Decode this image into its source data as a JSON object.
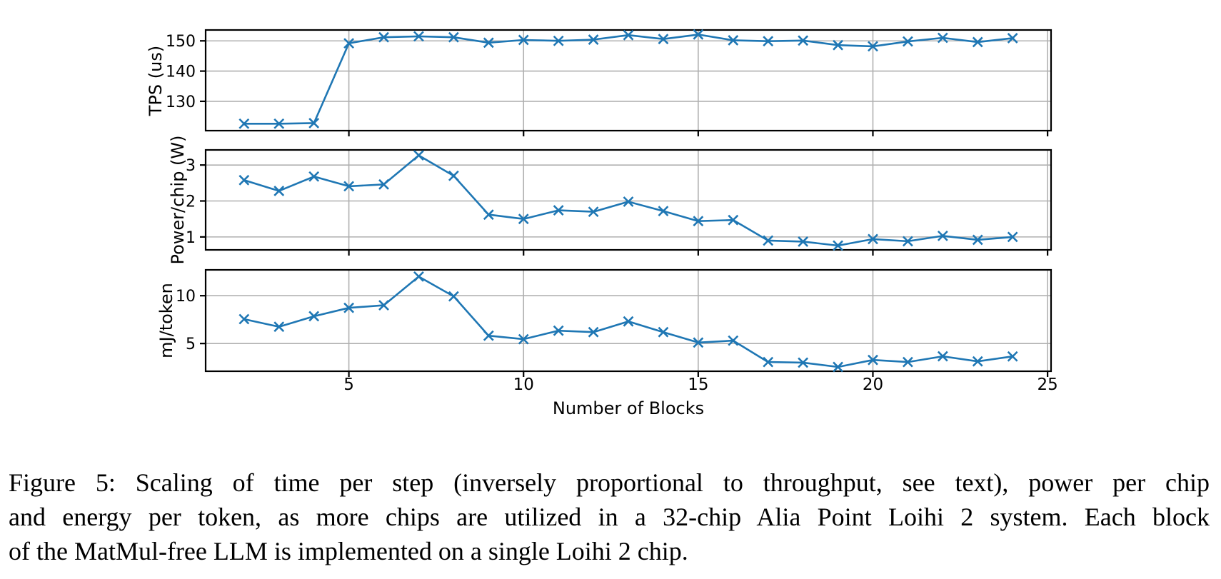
{
  "figure": {
    "caption_lines": [
      "Figure 5: Scaling of time per step (inversely proportional to throughput, see text), power per chip",
      "and energy per token, as more chips are utilized in a 32-chip Alia Point Loihi 2 system. Each block",
      "of the MatMul-free LLM is implemented on a single Loihi 2 chip."
    ]
  },
  "chart_data": {
    "type": "line",
    "title": "",
    "xlabel": "Number of Blocks",
    "x": [
      2,
      3,
      4,
      5,
      6,
      7,
      8,
      9,
      10,
      11,
      12,
      13,
      14,
      15,
      16,
      17,
      18,
      19,
      20,
      21,
      22,
      23,
      24
    ],
    "xlim": [
      0.9,
      25.1
    ],
    "xticks": [
      5,
      10,
      15,
      20,
      25
    ],
    "marker": "x",
    "line_color": "#1f77b4",
    "grid_color": "#b0b0b0",
    "frame_color": "#000000",
    "grid": "on",
    "legend": "none",
    "series": [
      {
        "name": "TPS (us)",
        "ylabel": "TPS (us)",
        "ylim": [
          120.3,
          153.6
        ],
        "yticks": [
          130,
          140,
          150
        ],
        "values": [
          122.6,
          122.6,
          122.8,
          149.2,
          151.2,
          151.5,
          151.2,
          149.4,
          150.3,
          150.0,
          150.4,
          151.9,
          150.6,
          152.1,
          150.2,
          149.9,
          150.1,
          148.6,
          148.2,
          149.8,
          151.0,
          149.6,
          150.9
        ]
      },
      {
        "name": "Power/chip (W)",
        "ylabel": "Power/chip (W)",
        "ylim": [
          0.64,
          3.42
        ],
        "yticks": [
          1,
          2,
          3
        ],
        "values": [
          2.58,
          2.28,
          2.68,
          2.41,
          2.46,
          3.27,
          2.7,
          1.62,
          1.5,
          1.74,
          1.7,
          1.98,
          1.72,
          1.44,
          1.47,
          0.9,
          0.87,
          0.76,
          0.94,
          0.88,
          1.03,
          0.92,
          1.0
        ]
      },
      {
        "name": "mJ/token",
        "ylabel": "mJ/token",
        "ylim": [
          2.1,
          12.7
        ],
        "yticks": [
          5,
          10
        ],
        "values": [
          7.55,
          6.75,
          7.85,
          8.73,
          9.0,
          12.0,
          9.93,
          5.82,
          5.45,
          6.34,
          6.19,
          7.31,
          6.19,
          5.1,
          5.3,
          3.06,
          3.0,
          2.55,
          3.28,
          3.06,
          3.66,
          3.13,
          3.65
        ]
      }
    ]
  }
}
